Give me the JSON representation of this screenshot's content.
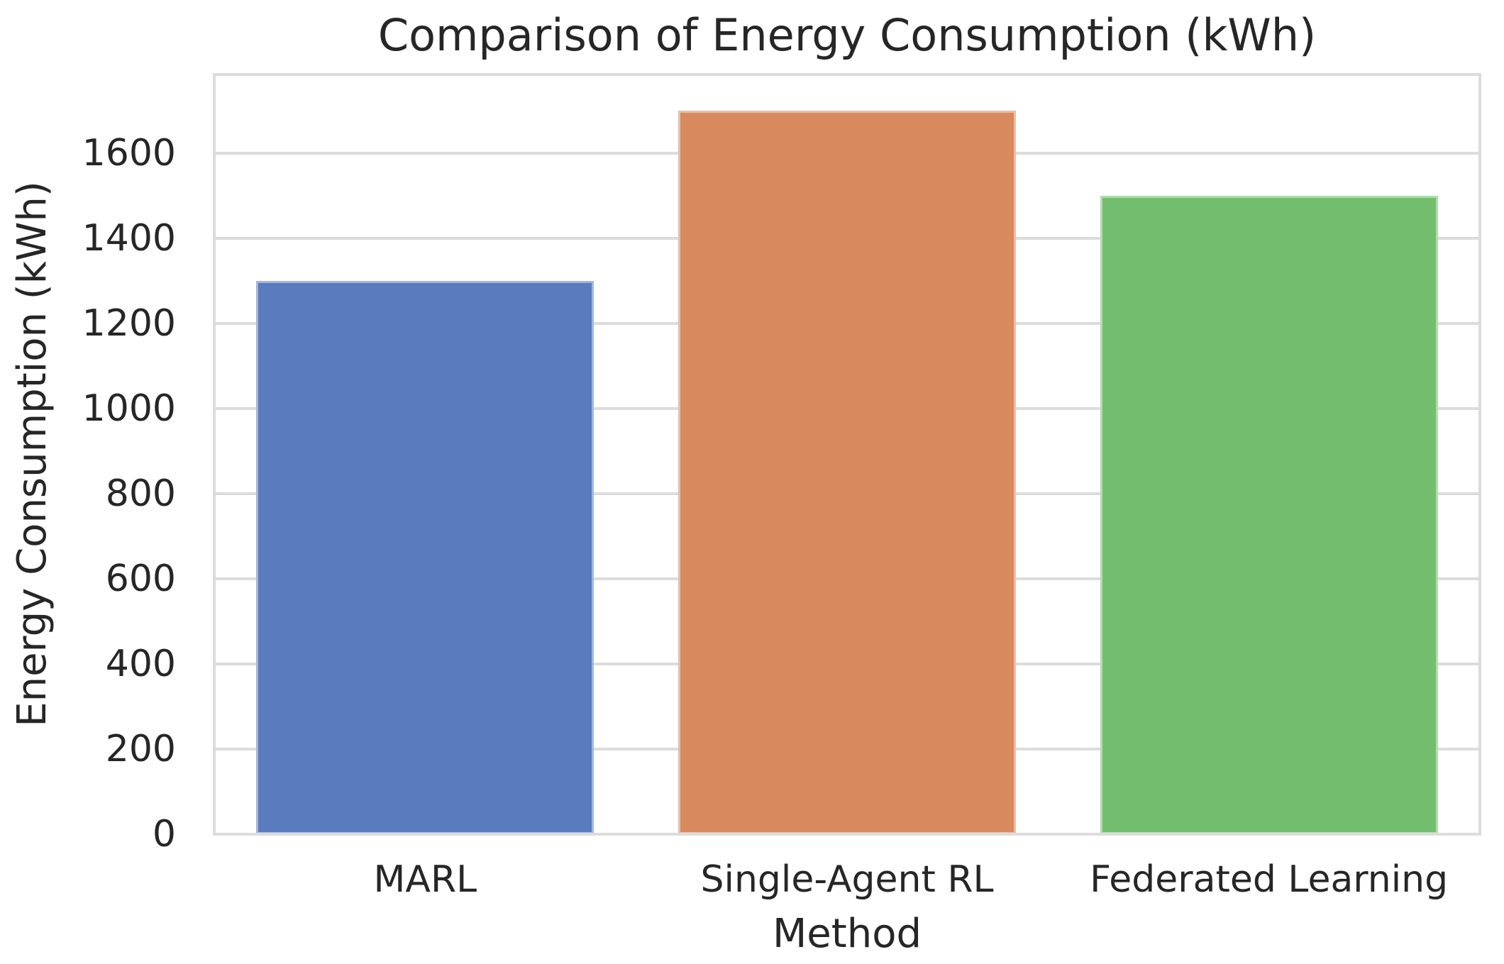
{
  "chart_data": {
    "type": "bar",
    "title": "Comparison of Energy Consumption (kWh)",
    "xlabel": "Method",
    "ylabel": "Energy Consumption (kWh)",
    "categories": [
      "MARL",
      "Single-Agent RL",
      "Federated Learning"
    ],
    "values": [
      1300,
      1700,
      1500
    ],
    "bar_colors": [
      "#5A7BBE",
      "#D8895E",
      "#73BE6E"
    ],
    "yticks": [
      0,
      200,
      400,
      600,
      800,
      1000,
      1200,
      1400,
      1600
    ],
    "ylim": [
      0,
      1785
    ],
    "grid": true,
    "legend": "none",
    "grid_color": "#DCDCDC",
    "text_color": "#262626",
    "background_color": "#FFFFFF"
  }
}
